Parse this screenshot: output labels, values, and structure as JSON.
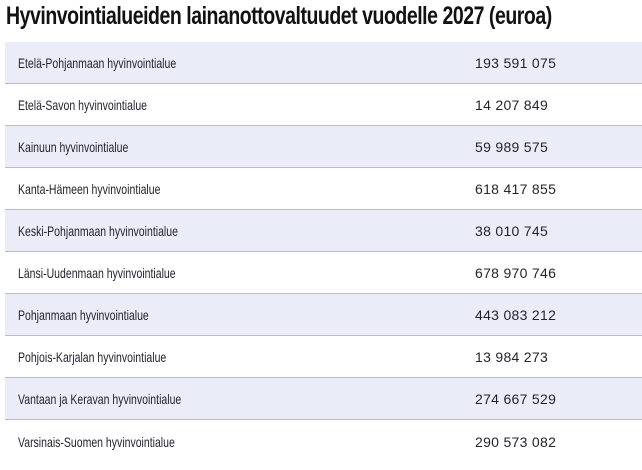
{
  "title": "Hyvinvointialueiden lainanottovaltuudet vuodelle 2027 (euroa)",
  "table": {
    "rows": [
      {
        "label": "Etelä-Pohjanmaan hyvinvointialue",
        "value": "193 591 075"
      },
      {
        "label": "Etelä-Savon hyvinvointialue",
        "value": "14 207 849"
      },
      {
        "label": "Kainuun hyvinvointialue",
        "value": "59 989 575"
      },
      {
        "label": "Kanta-Hämeen hyvinvointialue",
        "value": "618 417 855"
      },
      {
        "label": "Keski-Pohjanmaan hyvinvointialue",
        "value": "38 010 745"
      },
      {
        "label": "Länsi-Uudenmaan hyvinvointialue",
        "value": "678 970 746"
      },
      {
        "label": "Pohjanmaan hyvinvointialue",
        "value": "443 083 212"
      },
      {
        "label": "Pohjois-Karjalan hyvinvointialue",
        "value": "13 984 273"
      },
      {
        "label": "Vantaan ja Keravan hyvinvointialue",
        "value": "274 667 529"
      },
      {
        "label": "Varsinais-Suomen hyvinvointialue",
        "value": "290 573 082"
      }
    ]
  },
  "colors": {
    "stripe_row_background": "#eaecf7",
    "plain_row_background": "#ffffff",
    "row_border": "#bcbcc2",
    "row_text": "#24242e",
    "title_text": "#121212"
  },
  "chart_data": {
    "type": "table",
    "title": "Hyvinvointialueiden lainanottovaltuudet vuodelle 2027 (euroa)",
    "categories": [
      "Etelä-Pohjanmaan hyvinvointialue",
      "Etelä-Savon hyvinvointialue",
      "Kainuun hyvinvointialue",
      "Kanta-Hämeen hyvinvointialue",
      "Keski-Pohjanmaan hyvinvointialue",
      "Länsi-Uudenmaan hyvinvointialue",
      "Pohjanmaan hyvinvointialue",
      "Pohjois-Karjalan hyvinvointialue",
      "Vantaan ja Keravan hyvinvointialue",
      "Varsinais-Suomen hyvinvointialue"
    ],
    "values": [
      193591075,
      14207849,
      59989575,
      618417855,
      38010745,
      678970746,
      443083212,
      13984273,
      274667529,
      290573082
    ],
    "unit": "euroa",
    "year": 2027
  }
}
